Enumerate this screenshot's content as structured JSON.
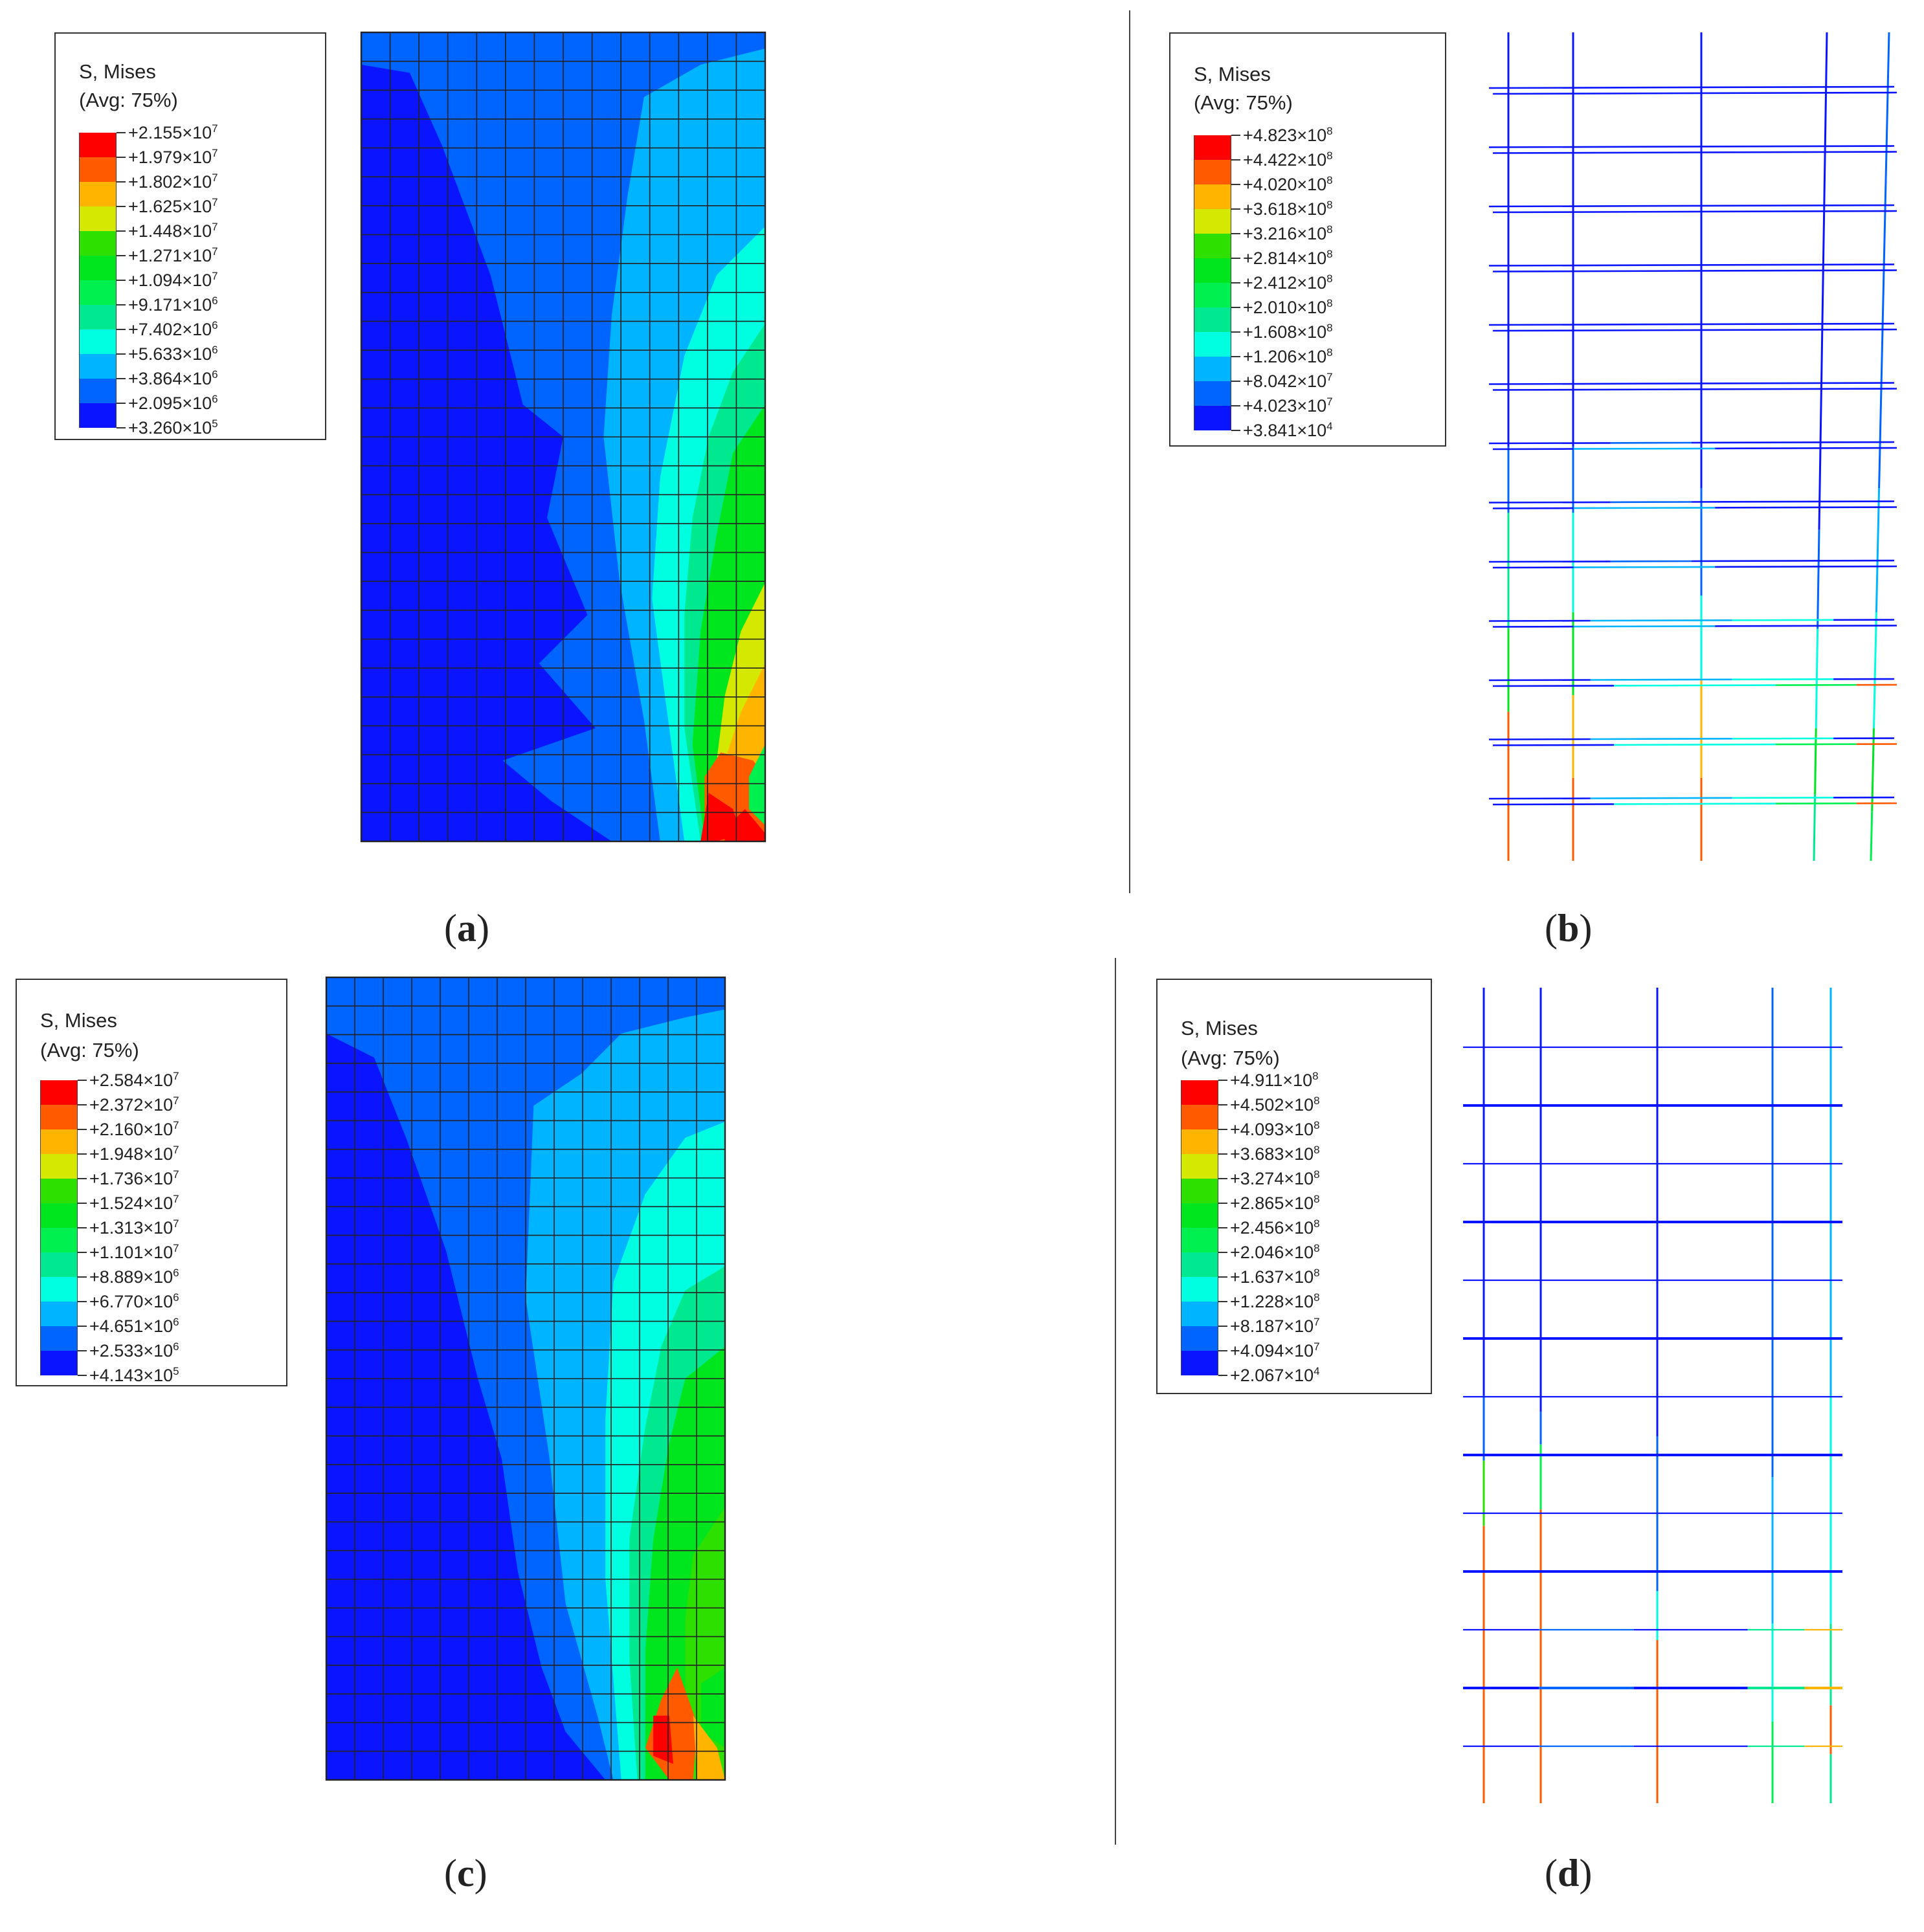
{
  "legend_title_line1": "S, Mises",
  "legend_title_line2": "(Avg: 75%)",
  "colors": [
    "#ff0000",
    "#ff5a00",
    "#ffb400",
    "#d4e800",
    "#2ee000",
    "#00e61e",
    "#00f050",
    "#00e890",
    "#00ffe0",
    "#00b4ff",
    "#0064ff",
    "#0a14ff"
  ],
  "panels": [
    {
      "id": "a",
      "label_open": "(",
      "label_letter": "a",
      "label_close": ")",
      "legend_values": [
        {
          "mant": "+2.155",
          "exp": "7"
        },
        {
          "mant": "+1.979",
          "exp": "7"
        },
        {
          "mant": "+1.802",
          "exp": "7"
        },
        {
          "mant": "+1.625",
          "exp": "7"
        },
        {
          "mant": "+1.448",
          "exp": "7"
        },
        {
          "mant": "+1.271",
          "exp": "7"
        },
        {
          "mant": "+1.094",
          "exp": "7"
        },
        {
          "mant": "+9.171",
          "exp": "6"
        },
        {
          "mant": "+7.402",
          "exp": "6"
        },
        {
          "mant": "+5.633",
          "exp": "6"
        },
        {
          "mant": "+3.864",
          "exp": "6"
        },
        {
          "mant": "+2.095",
          "exp": "6"
        },
        {
          "mant": "+3.260",
          "exp": "5"
        }
      ]
    },
    {
      "id": "b",
      "label_open": "(",
      "label_letter": "b",
      "label_close": ")",
      "legend_values": [
        {
          "mant": "+4.823",
          "exp": "8"
        },
        {
          "mant": "+4.422",
          "exp": "8"
        },
        {
          "mant": "+4.020",
          "exp": "8"
        },
        {
          "mant": "+3.618",
          "exp": "8"
        },
        {
          "mant": "+3.216",
          "exp": "8"
        },
        {
          "mant": "+2.814",
          "exp": "8"
        },
        {
          "mant": "+2.412",
          "exp": "8"
        },
        {
          "mant": "+2.010",
          "exp": "8"
        },
        {
          "mant": "+1.608",
          "exp": "8"
        },
        {
          "mant": "+1.206",
          "exp": "8"
        },
        {
          "mant": "+8.042",
          "exp": "7"
        },
        {
          "mant": "+4.023",
          "exp": "7"
        },
        {
          "mant": "+3.841",
          "exp": "4"
        }
      ]
    },
    {
      "id": "c",
      "label_open": "(",
      "label_letter": "c",
      "label_close": ")",
      "legend_values": [
        {
          "mant": "+2.584",
          "exp": "7"
        },
        {
          "mant": "+2.372",
          "exp": "7"
        },
        {
          "mant": "+2.160",
          "exp": "7"
        },
        {
          "mant": "+1.948",
          "exp": "7"
        },
        {
          "mant": "+1.736",
          "exp": "7"
        },
        {
          "mant": "+1.524",
          "exp": "7"
        },
        {
          "mant": "+1.313",
          "exp": "7"
        },
        {
          "mant": "+1.101",
          "exp": "7"
        },
        {
          "mant": "+8.889",
          "exp": "6"
        },
        {
          "mant": "+6.770",
          "exp": "6"
        },
        {
          "mant": "+4.651",
          "exp": "6"
        },
        {
          "mant": "+2.533",
          "exp": "6"
        },
        {
          "mant": "+4.143",
          "exp": "5"
        }
      ]
    },
    {
      "id": "d",
      "label_open": "(",
      "label_letter": "d",
      "label_close": ")",
      "legend_values": [
        {
          "mant": "+4.911",
          "exp": "8"
        },
        {
          "mant": "+4.502",
          "exp": "8"
        },
        {
          "mant": "+4.093",
          "exp": "8"
        },
        {
          "mant": "+3.683",
          "exp": "8"
        },
        {
          "mant": "+3.274",
          "exp": "8"
        },
        {
          "mant": "+2.865",
          "exp": "8"
        },
        {
          "mant": "+2.456",
          "exp": "8"
        },
        {
          "mant": "+2.046",
          "exp": "8"
        },
        {
          "mant": "+1.637",
          "exp": "8"
        },
        {
          "mant": "+1.228",
          "exp": "8"
        },
        {
          "mant": "+8.187",
          "exp": "7"
        },
        {
          "mant": "+4.094",
          "exp": "7"
        },
        {
          "mant": "+2.067",
          "exp": "4"
        }
      ]
    }
  ]
}
